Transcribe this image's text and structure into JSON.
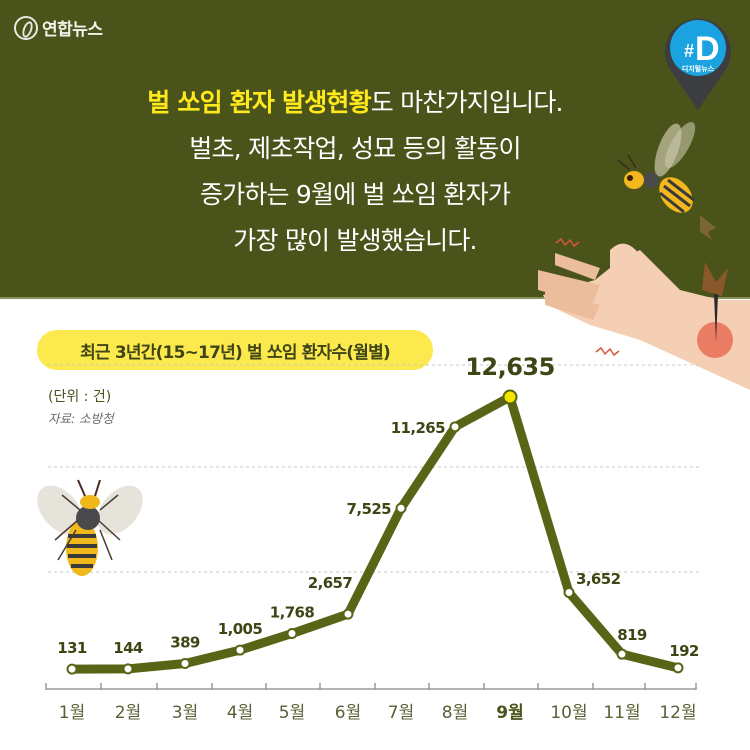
{
  "header": {
    "logo_text": "연합뉴스",
    "badge": {
      "symbol": "#D",
      "label": "디지털뉴스"
    },
    "headline": {
      "highlight": "벌 쏘임 환자 발생현황",
      "line1_rest": "도 마찬가지입니다.",
      "line2": "벌초, 제초작업, 성묘 등의 활동이",
      "line3": "증가하는 9월에 벌 쏘임 환자가",
      "line4": "가장 많이 발생했습니다."
    }
  },
  "chart_header": {
    "title": "최근 3년간(15~17년) 벌 쏘임 환자수(월별)",
    "unit": "(단위 : 건)",
    "source": "자료: 소방청"
  },
  "colors": {
    "header_bg": "#4a531a",
    "highlight_text": "#ffe81c",
    "line": "#5a6417",
    "peak_marker": "#f5e400",
    "pill_bg": "#fbe94e"
  },
  "chart_data": {
    "type": "line",
    "title": "최근 3년간(15~17년) 벌 쏘임 환자수(월별)",
    "xlabel": "",
    "ylabel": "(단위 : 건)",
    "categories": [
      "1월",
      "2월",
      "3월",
      "4월",
      "5월",
      "6월",
      "7월",
      "8월",
      "9월",
      "10월",
      "11월",
      "12월"
    ],
    "series": [
      {
        "name": "벌 쏘임 환자수",
        "values": [
          131,
          144,
          389,
          1005,
          1768,
          2657,
          7525,
          11265,
          12635,
          3652,
          819,
          192
        ]
      }
    ],
    "labels": [
      "131",
      "144",
      "389",
      "1,005",
      "1,768",
      "2,657",
      "7,525",
      "11,265",
      "12,635",
      "3,652",
      "819",
      "192"
    ],
    "highlight_index": 8,
    "grid": "dashed horizontal",
    "legend": "none",
    "source": "자료: 소방청"
  }
}
